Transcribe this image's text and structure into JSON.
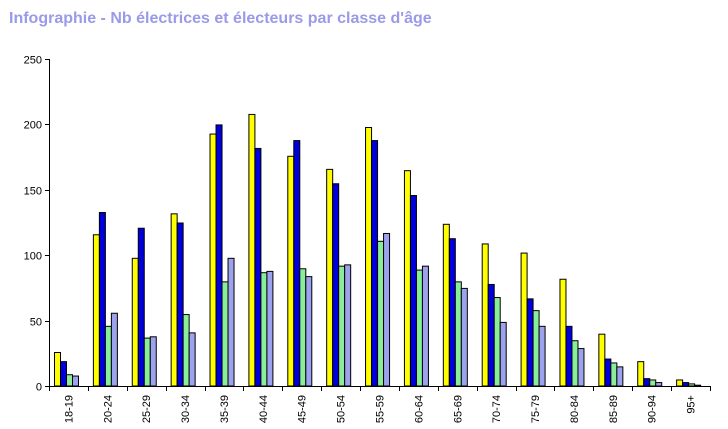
{
  "chart_data": {
    "type": "bar",
    "title": "Infographie - Nb électrices et électeurs par classe d'âge",
    "xlabel": "",
    "ylabel": "",
    "ylim": [
      0,
      250
    ],
    "yticks": [
      0,
      50,
      100,
      150,
      200,
      250
    ],
    "grid": false,
    "legend": "none",
    "categories": [
      "18-19",
      "20-24",
      "25-29",
      "30-34",
      "35-39",
      "40-44",
      "45-49",
      "50-54",
      "55-59",
      "60-64",
      "65-69",
      "70-74",
      "75-79",
      "80-84",
      "85-89",
      "90-94",
      "95+"
    ],
    "series": [
      {
        "color": "#ffff00",
        "values": [
          26,
          116,
          98,
          132,
          193,
          208,
          176,
          166,
          198,
          165,
          124,
          109,
          102,
          82,
          40,
          19,
          5
        ]
      },
      {
        "color": "#0000dd",
        "values": [
          19,
          133,
          121,
          125,
          200,
          182,
          188,
          155,
          188,
          146,
          113,
          78,
          67,
          46,
          21,
          6,
          3
        ]
      },
      {
        "color": "#88ee99",
        "values": [
          9,
          46,
          37,
          55,
          80,
          87,
          90,
          92,
          111,
          89,
          80,
          68,
          58,
          35,
          18,
          5,
          2
        ]
      },
      {
        "color": "#9da2ee",
        "values": [
          8,
          56,
          38,
          41,
          98,
          88,
          84,
          93,
          117,
          92,
          75,
          49,
          46,
          29,
          15,
          3,
          1
        ]
      }
    ]
  }
}
